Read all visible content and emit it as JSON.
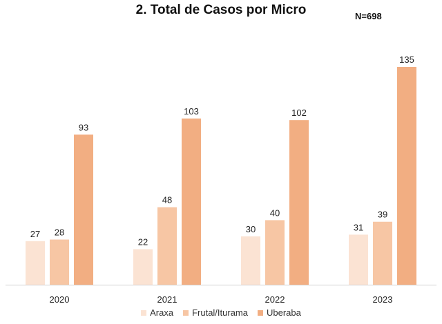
{
  "chart_data": {
    "type": "bar",
    "title": "2. Total de Casos por Micro",
    "annotation": "N=698",
    "categories": [
      "2020",
      "2021",
      "2022",
      "2023"
    ],
    "series": [
      {
        "name": "Araxa",
        "values": [
          27,
          22,
          30,
          31
        ],
        "color": "#fbe3d3"
      },
      {
        "name": "Frutal/Iturama",
        "values": [
          28,
          48,
          40,
          39
        ],
        "color": "#f7c6a4"
      },
      {
        "name": "Uberaba",
        "values": [
          93,
          103,
          102,
          135
        ],
        "color": "#f2ae82"
      }
    ],
    "ylim": [
      0,
      140
    ],
    "grid": false,
    "legend_position": "bottom",
    "axis_line_color": "#d0d0d0"
  }
}
